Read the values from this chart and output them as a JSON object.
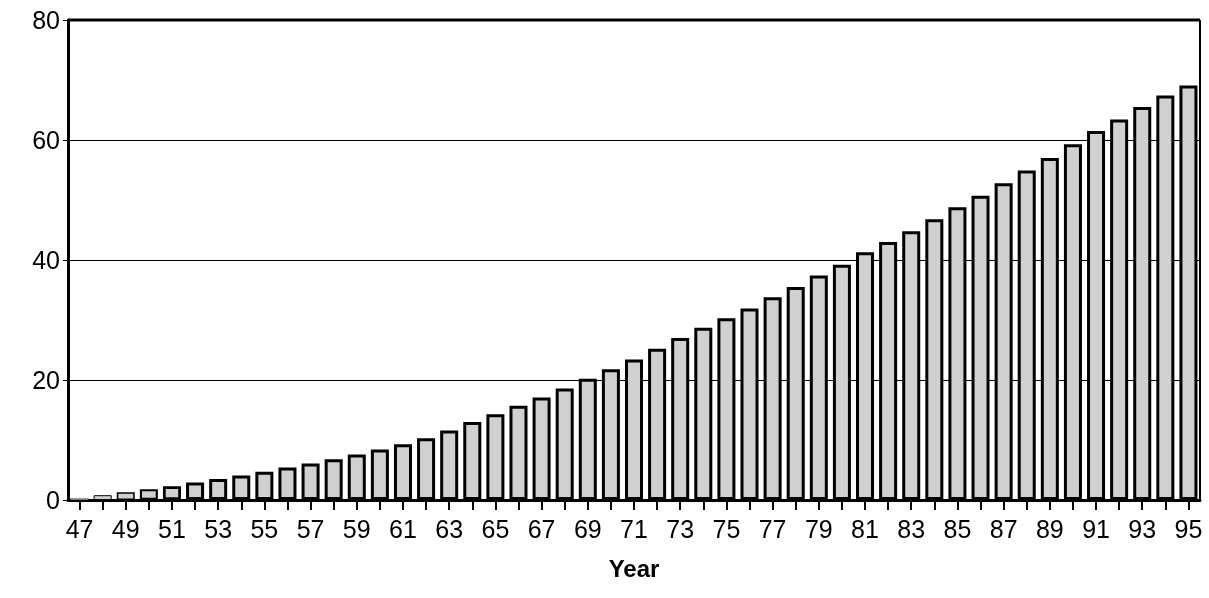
{
  "chart_data": {
    "type": "bar",
    "xlabel": "Year",
    "categories": [
      "47",
      null,
      "49",
      null,
      "51",
      null,
      "53",
      null,
      "55",
      null,
      "57",
      null,
      "59",
      null,
      "61",
      null,
      "63",
      null,
      "65",
      null,
      "67",
      null,
      "69",
      null,
      "71",
      null,
      "73",
      null,
      "75",
      null,
      "77",
      null,
      "79",
      null,
      "81",
      null,
      "83",
      null,
      "85",
      null,
      "87",
      null,
      "89",
      null,
      "91",
      null,
      "93",
      null,
      "95"
    ],
    "values": [
      0.3,
      0.8,
      1.3,
      1.8,
      2.3,
      2.9,
      3.5,
      4.1,
      4.7,
      5.4,
      6.1,
      6.8,
      7.6,
      8.4,
      9.3,
      10.3,
      11.6,
      13.0,
      14.3,
      15.7,
      17.1,
      18.6,
      20.2,
      21.8,
      23.4,
      25.2,
      27.0,
      28.7,
      30.3,
      31.9,
      33.8,
      35.5,
      37.4,
      39.2,
      41.3,
      43.0,
      44.8,
      46.8,
      48.8,
      50.7,
      52.8,
      54.9,
      57.0,
      59.3,
      61.5,
      63.4,
      65.5,
      67.4,
      69.1
    ],
    "color": "#d0d0d0",
    "ylim": [
      0,
      80
    ],
    "yticks": [
      0,
      20,
      40,
      60,
      80
    ],
    "grid": "y"
  }
}
